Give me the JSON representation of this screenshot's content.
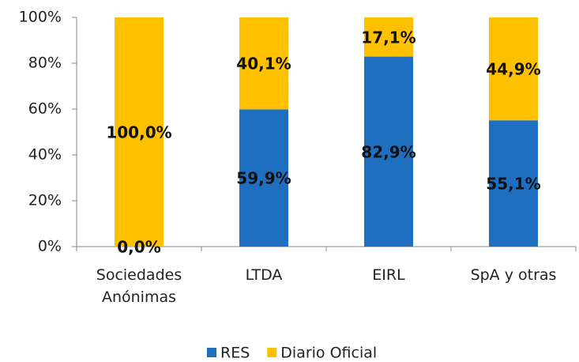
{
  "chart_data": {
    "type": "stacked_bar",
    "categories": [
      "Sociedades Anónimas",
      "LTDA",
      "EIRL",
      "SpA y otras"
    ],
    "series": [
      {
        "name": "RES",
        "color": "#1f6fc0",
        "values": [
          0,
          59.9,
          82.9,
          55.1
        ],
        "value_labels": [
          "0,0%",
          "59,9%",
          "82,9%",
          "55,1%"
        ]
      },
      {
        "name": "Diario Oficial",
        "color": "#ffc000",
        "values": [
          100,
          40.1,
          17.1,
          44.9
        ],
        "value_labels": [
          "100,0%",
          "40,1%",
          "17,1%",
          "44,9%"
        ]
      }
    ],
    "ylim": [
      0,
      100
    ],
    "yticks": [
      {
        "value": 0,
        "label": "0%"
      },
      {
        "value": 20,
        "label": "20%"
      },
      {
        "value": 40,
        "label": "40%"
      },
      {
        "value": 60,
        "label": "60%"
      },
      {
        "value": 80,
        "label": "80%"
      },
      {
        "value": 100,
        "label": "100%"
      }
    ],
    "legend": "bottom"
  }
}
